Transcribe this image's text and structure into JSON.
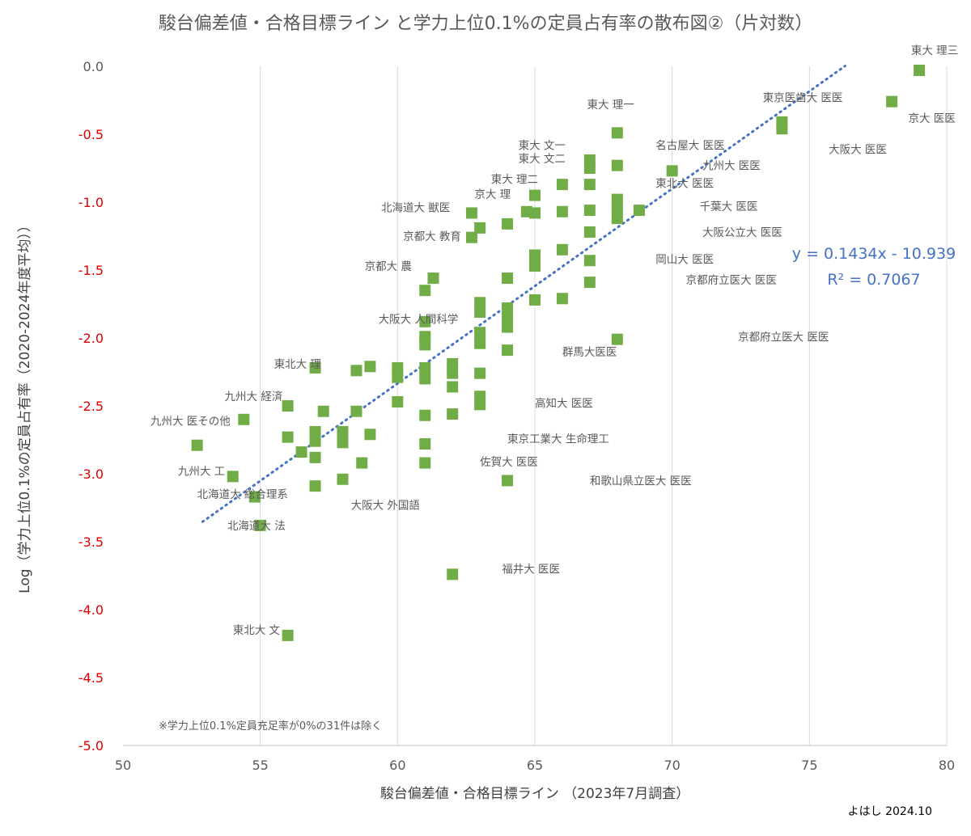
{
  "chart_data": {
    "type": "scatter",
    "title": "駿台偏差値・合格目標ライン と学力上位0.1%の定員占有率の散布図②（片対数）",
    "xlabel": "駿台偏差値・合格目標ライン （2023年7月調査）",
    "ylabel": "Log（学力上位0.1%の定員占有率（2020-2024年度平均））",
    "xlim": [
      50,
      80
    ],
    "ylim": [
      -5.0,
      0.0
    ],
    "x_ticks": [
      "50",
      "55",
      "60",
      "65",
      "70",
      "75",
      "80"
    ],
    "y_ticks": [
      "0.0",
      "-0.5",
      "-1.0",
      "-1.5",
      "-2.0",
      "-2.5",
      "-3.0",
      "-3.5",
      "-4.0",
      "-4.5",
      "-5.0"
    ],
    "grid": "vertical",
    "marker_color": "#70ad47",
    "trendline_color": "#4472c4",
    "trendline": {
      "equation": "y = 0.1434x - 10.939",
      "r2": "R² = 0.7067",
      "slope": 0.1434,
      "intercept": -10.939,
      "x_range": [
        52.9,
        76.3
      ]
    },
    "points": [
      {
        "x": 79.0,
        "y": -0.03
      },
      {
        "x": 78.0,
        "y": -0.26
      },
      {
        "x": 74.0,
        "y": -0.41
      },
      {
        "x": 74.0,
        "y": -0.46
      },
      {
        "x": 70.0,
        "y": -0.77
      },
      {
        "x": 68.8,
        "y": -1.06
      },
      {
        "x": 68.0,
        "y": -0.49
      },
      {
        "x": 68.0,
        "y": -0.73
      },
      {
        "x": 68.0,
        "y": -0.98
      },
      {
        "x": 68.0,
        "y": -1.04
      },
      {
        "x": 68.0,
        "y": -1.12
      },
      {
        "x": 67.0,
        "y": -0.69
      },
      {
        "x": 67.0,
        "y": -0.75
      },
      {
        "x": 67.0,
        "y": -0.87
      },
      {
        "x": 67.0,
        "y": -1.06
      },
      {
        "x": 67.0,
        "y": -1.22
      },
      {
        "x": 67.0,
        "y": -1.43
      },
      {
        "x": 67.0,
        "y": -1.59
      },
      {
        "x": 68.0,
        "y": -2.01
      },
      {
        "x": 66.0,
        "y": -0.87
      },
      {
        "x": 66.0,
        "y": -1.07
      },
      {
        "x": 66.0,
        "y": -1.35
      },
      {
        "x": 66.0,
        "y": -1.71
      },
      {
        "x": 65.0,
        "y": -0.95
      },
      {
        "x": 65.0,
        "y": -1.08
      },
      {
        "x": 65.0,
        "y": -1.39
      },
      {
        "x": 65.0,
        "y": -1.47
      },
      {
        "x": 65.0,
        "y": -1.72
      },
      {
        "x": 64.7,
        "y": -1.07
      },
      {
        "x": 64.0,
        "y": -1.16
      },
      {
        "x": 64.0,
        "y": -1.56
      },
      {
        "x": 64.0,
        "y": -1.78
      },
      {
        "x": 64.0,
        "y": -1.86
      },
      {
        "x": 64.0,
        "y": -1.92
      },
      {
        "x": 64.0,
        "y": -2.09
      },
      {
        "x": 64.0,
        "y": -3.05
      },
      {
        "x": 63.0,
        "y": -1.19
      },
      {
        "x": 63.0,
        "y": -1.74
      },
      {
        "x": 63.0,
        "y": -1.81
      },
      {
        "x": 63.0,
        "y": -1.96
      },
      {
        "x": 63.0,
        "y": -2.04
      },
      {
        "x": 63.0,
        "y": -2.26
      },
      {
        "x": 63.0,
        "y": -2.43
      },
      {
        "x": 63.0,
        "y": -2.49
      },
      {
        "x": 62.7,
        "y": -1.08
      },
      {
        "x": 62.7,
        "y": -1.26
      },
      {
        "x": 62.0,
        "y": -2.19
      },
      {
        "x": 62.0,
        "y": -2.26
      },
      {
        "x": 62.0,
        "y": -2.36
      },
      {
        "x": 62.0,
        "y": -2.56
      },
      {
        "x": 62.0,
        "y": -3.74
      },
      {
        "x": 61.3,
        "y": -1.56
      },
      {
        "x": 61.0,
        "y": -1.65
      },
      {
        "x": 61.0,
        "y": -1.88
      },
      {
        "x": 61.0,
        "y": -1.99
      },
      {
        "x": 61.0,
        "y": -2.05
      },
      {
        "x": 61.0,
        "y": -2.22
      },
      {
        "x": 61.0,
        "y": -2.3
      },
      {
        "x": 61.0,
        "y": -2.57
      },
      {
        "x": 61.0,
        "y": -2.78
      },
      {
        "x": 61.0,
        "y": -2.92
      },
      {
        "x": 60.0,
        "y": -2.22
      },
      {
        "x": 60.0,
        "y": -2.29
      },
      {
        "x": 60.0,
        "y": -2.47
      },
      {
        "x": 59.0,
        "y": -2.21
      },
      {
        "x": 59.0,
        "y": -2.71
      },
      {
        "x": 58.7,
        "y": -2.92
      },
      {
        "x": 58.5,
        "y": -2.24
      },
      {
        "x": 58.5,
        "y": -2.54
      },
      {
        "x": 58.0,
        "y": -2.69
      },
      {
        "x": 58.0,
        "y": -2.77
      },
      {
        "x": 58.0,
        "y": -3.04
      },
      {
        "x": 57.3,
        "y": -2.54
      },
      {
        "x": 57.0,
        "y": -2.22
      },
      {
        "x": 57.0,
        "y": -2.69
      },
      {
        "x": 57.0,
        "y": -2.76
      },
      {
        "x": 57.0,
        "y": -2.88
      },
      {
        "x": 57.0,
        "y": -3.09
      },
      {
        "x": 56.5,
        "y": -2.84
      },
      {
        "x": 56.0,
        "y": -2.5
      },
      {
        "x": 56.0,
        "y": -2.73
      },
      {
        "x": 56.0,
        "y": -4.19
      },
      {
        "x": 55.0,
        "y": -3.38
      },
      {
        "x": 54.8,
        "y": -3.17
      },
      {
        "x": 54.4,
        "y": -2.6
      },
      {
        "x": 54.0,
        "y": -3.02
      },
      {
        "x": 52.7,
        "y": -2.79
      }
    ],
    "annotations": [
      {
        "text": "東大 理三",
        "x": 78.7,
        "y": 0.12
      },
      {
        "text": "京大 医医",
        "x": 78.6,
        "y": -0.38
      },
      {
        "text": "東京医歯大 医医",
        "x": 73.3,
        "y": -0.23
      },
      {
        "text": "大阪大 医医",
        "x": 75.7,
        "y": -0.61
      },
      {
        "text": "東大 理一",
        "x": 66.9,
        "y": -0.28
      },
      {
        "text": "名古屋大 医医",
        "x": 69.4,
        "y": -0.58
      },
      {
        "text": "東大 文一",
        "x": 64.4,
        "y": -0.58
      },
      {
        "text": "東大 文二",
        "x": 64.4,
        "y": -0.68
      },
      {
        "text": "九州大 医医",
        "x": 71.1,
        "y": -0.73
      },
      {
        "text": "東大 理二",
        "x": 63.4,
        "y": -0.83
      },
      {
        "text": "東北大 医医",
        "x": 69.4,
        "y": -0.86
      },
      {
        "text": "京大 理",
        "x": 62.8,
        "y": -0.94
      },
      {
        "text": "千葉大 医医",
        "x": 71.0,
        "y": -1.03
      },
      {
        "text": "北海道大 獣医",
        "x": 59.4,
        "y": -1.04
      },
      {
        "text": "大阪公立大 医医",
        "x": 71.1,
        "y": -1.22
      },
      {
        "text": "京都大 教育",
        "x": 60.2,
        "y": -1.25
      },
      {
        "text": "岡山大 医医",
        "x": 69.4,
        "y": -1.42
      },
      {
        "text": "京都大 農",
        "x": 58.8,
        "y": -1.47
      },
      {
        "text": "京都府立医大 医医",
        "x": 70.5,
        "y": -1.57
      },
      {
        "text": "大阪大 人間科学",
        "x": 59.3,
        "y": -1.86
      },
      {
        "text": "京都府立医大 医医",
        "x": 72.4,
        "y": -1.99
      },
      {
        "text": "群馬大医医",
        "x": 66.0,
        "y": -2.1
      },
      {
        "text": "東北大 理",
        "x": 55.5,
        "y": -2.19
      },
      {
        "text": "九州大 経済",
        "x": 53.7,
        "y": -2.43
      },
      {
        "text": "高知大 医医",
        "x": 65.0,
        "y": -2.48
      },
      {
        "text": "九州大 医その他",
        "x": 51.0,
        "y": -2.61
      },
      {
        "text": "東京工業大 生命理工",
        "x": 64.0,
        "y": -2.74
      },
      {
        "text": "佐賀大 医医",
        "x": 63.0,
        "y": -2.91
      },
      {
        "text": "九州大 工",
        "x": 52.0,
        "y": -2.98
      },
      {
        "text": "和歌山県立医大 医医",
        "x": 67.0,
        "y": -3.05
      },
      {
        "text": "北海道大 総合理系",
        "x": 52.7,
        "y": -3.15
      },
      {
        "text": "大阪大 外国語",
        "x": 58.3,
        "y": -3.23
      },
      {
        "text": "北海道大 法",
        "x": 53.8,
        "y": -3.38
      },
      {
        "text": "福井大 医医",
        "x": 63.8,
        "y": -3.7
      },
      {
        "text": "東北大 文",
        "x": 54.0,
        "y": -4.15
      }
    ],
    "note": "※学力上位0.1%定員充足率が0%の31件は除く"
  },
  "footer": {
    "credit": "よはし 2024.10"
  }
}
